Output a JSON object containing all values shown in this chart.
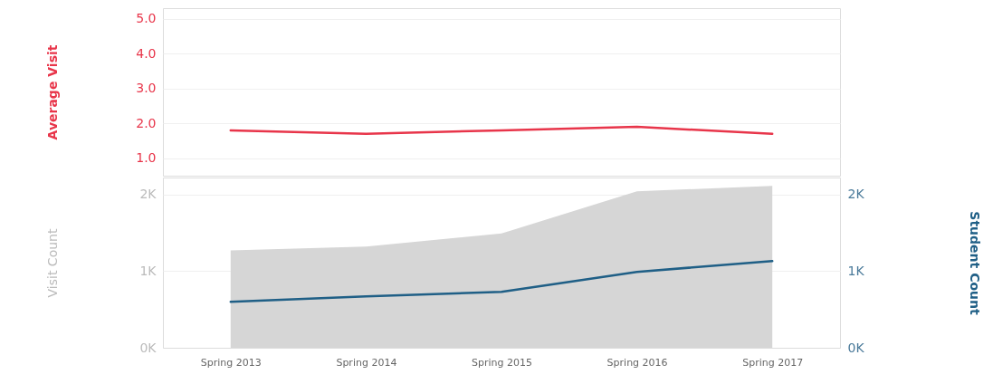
{
  "chart_data": [
    {
      "type": "line",
      "ylabel": "Average Visit",
      "categories": [
        "Spring 2013",
        "Spring 2014",
        "Spring 2015",
        "Spring 2016",
        "Spring 2017"
      ],
      "series": [
        {
          "color": "#e8354a",
          "values": [
            1.8,
            1.7,
            1.8,
            1.9,
            1.7
          ]
        }
      ],
      "ylim": [
        0.5,
        5.3
      ],
      "yticks": [
        {
          "value": 1,
          "label": "1.0"
        },
        {
          "value": 2,
          "label": "2.0"
        },
        {
          "value": 3,
          "label": "3.0"
        },
        {
          "value": 4,
          "label": "4.0"
        },
        {
          "value": 5,
          "label": "5.0"
        }
      ],
      "grid": "y",
      "legend": false,
      "tick_labels": "y"
    },
    {
      "type": "line",
      "ylabel": "Visit Count",
      "y2label": "Student Count",
      "categories": [
        "Spring 2013",
        "Spring 2014",
        "Spring 2015",
        "Spring 2016",
        "Spring 2017"
      ],
      "series": [
        {
          "type": "area",
          "color": "#d6d6d6",
          "values": [
            1270,
            1320,
            1490,
            2040,
            2110
          ]
        },
        {
          "axis": "y2",
          "color": "#1f5f86",
          "values": [
            600,
            670,
            730,
            990,
            1130
          ]
        }
      ],
      "ylim": [
        0,
        2220
      ],
      "yticks": [
        {
          "value": 0,
          "label": "0K"
        },
        {
          "value": 1000,
          "label": "1K"
        },
        {
          "value": 2000,
          "label": "2K"
        }
      ],
      "y2lim": [
        0,
        2220
      ],
      "y2ticks": [
        {
          "value": 0,
          "label": "0K"
        },
        {
          "value": 1000,
          "label": "1K"
        },
        {
          "value": 2000,
          "label": "2K"
        }
      ],
      "grid": "y",
      "legend": false
    }
  ]
}
